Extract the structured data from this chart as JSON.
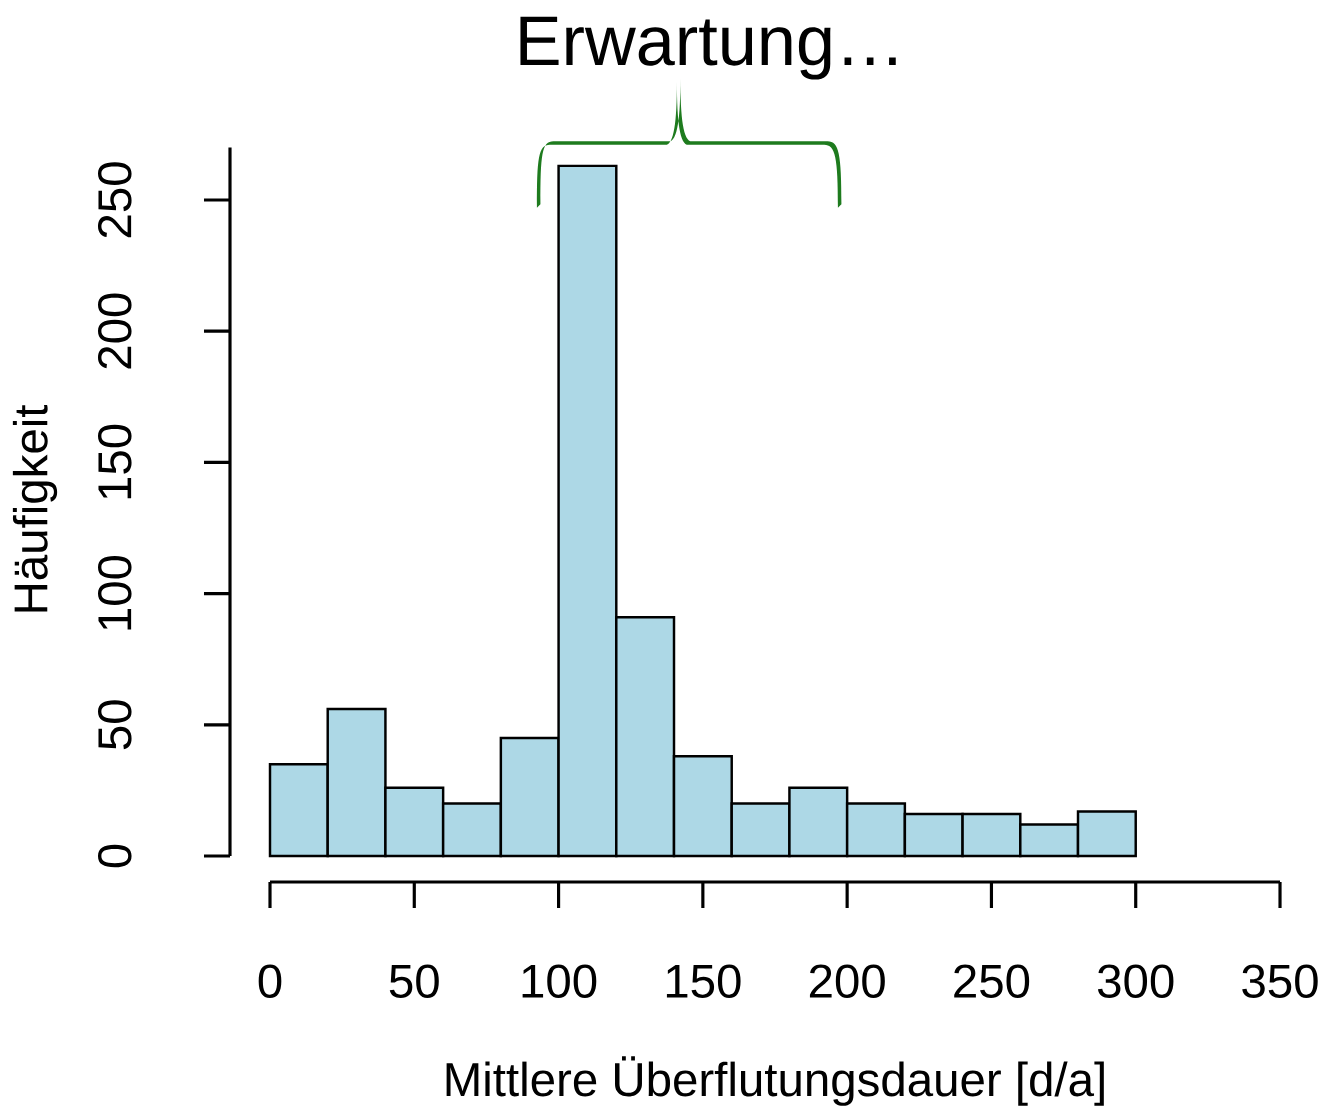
{
  "chart_data": {
    "type": "histogram",
    "title": "Erwartung…",
    "xlabel": "Mittlere Überflutungsdauer [d/a]",
    "ylabel": "Häufigkeit",
    "bins": [
      0,
      20,
      40,
      60,
      80,
      100,
      120,
      140,
      160,
      180,
      200,
      220,
      240,
      260,
      280,
      300
    ],
    "values": [
      35,
      56,
      26,
      20,
      45,
      263,
      91,
      38,
      20,
      26,
      20,
      16,
      16,
      12,
      17
    ],
    "color": "#add8e6",
    "xlim": [
      0,
      350
    ],
    "xticks": [
      0,
      50,
      100,
      150,
      200,
      250,
      300,
      350
    ],
    "ylim": [
      0,
      270
    ],
    "yticks": [
      0,
      50,
      100,
      150,
      200,
      250
    ]
  }
}
